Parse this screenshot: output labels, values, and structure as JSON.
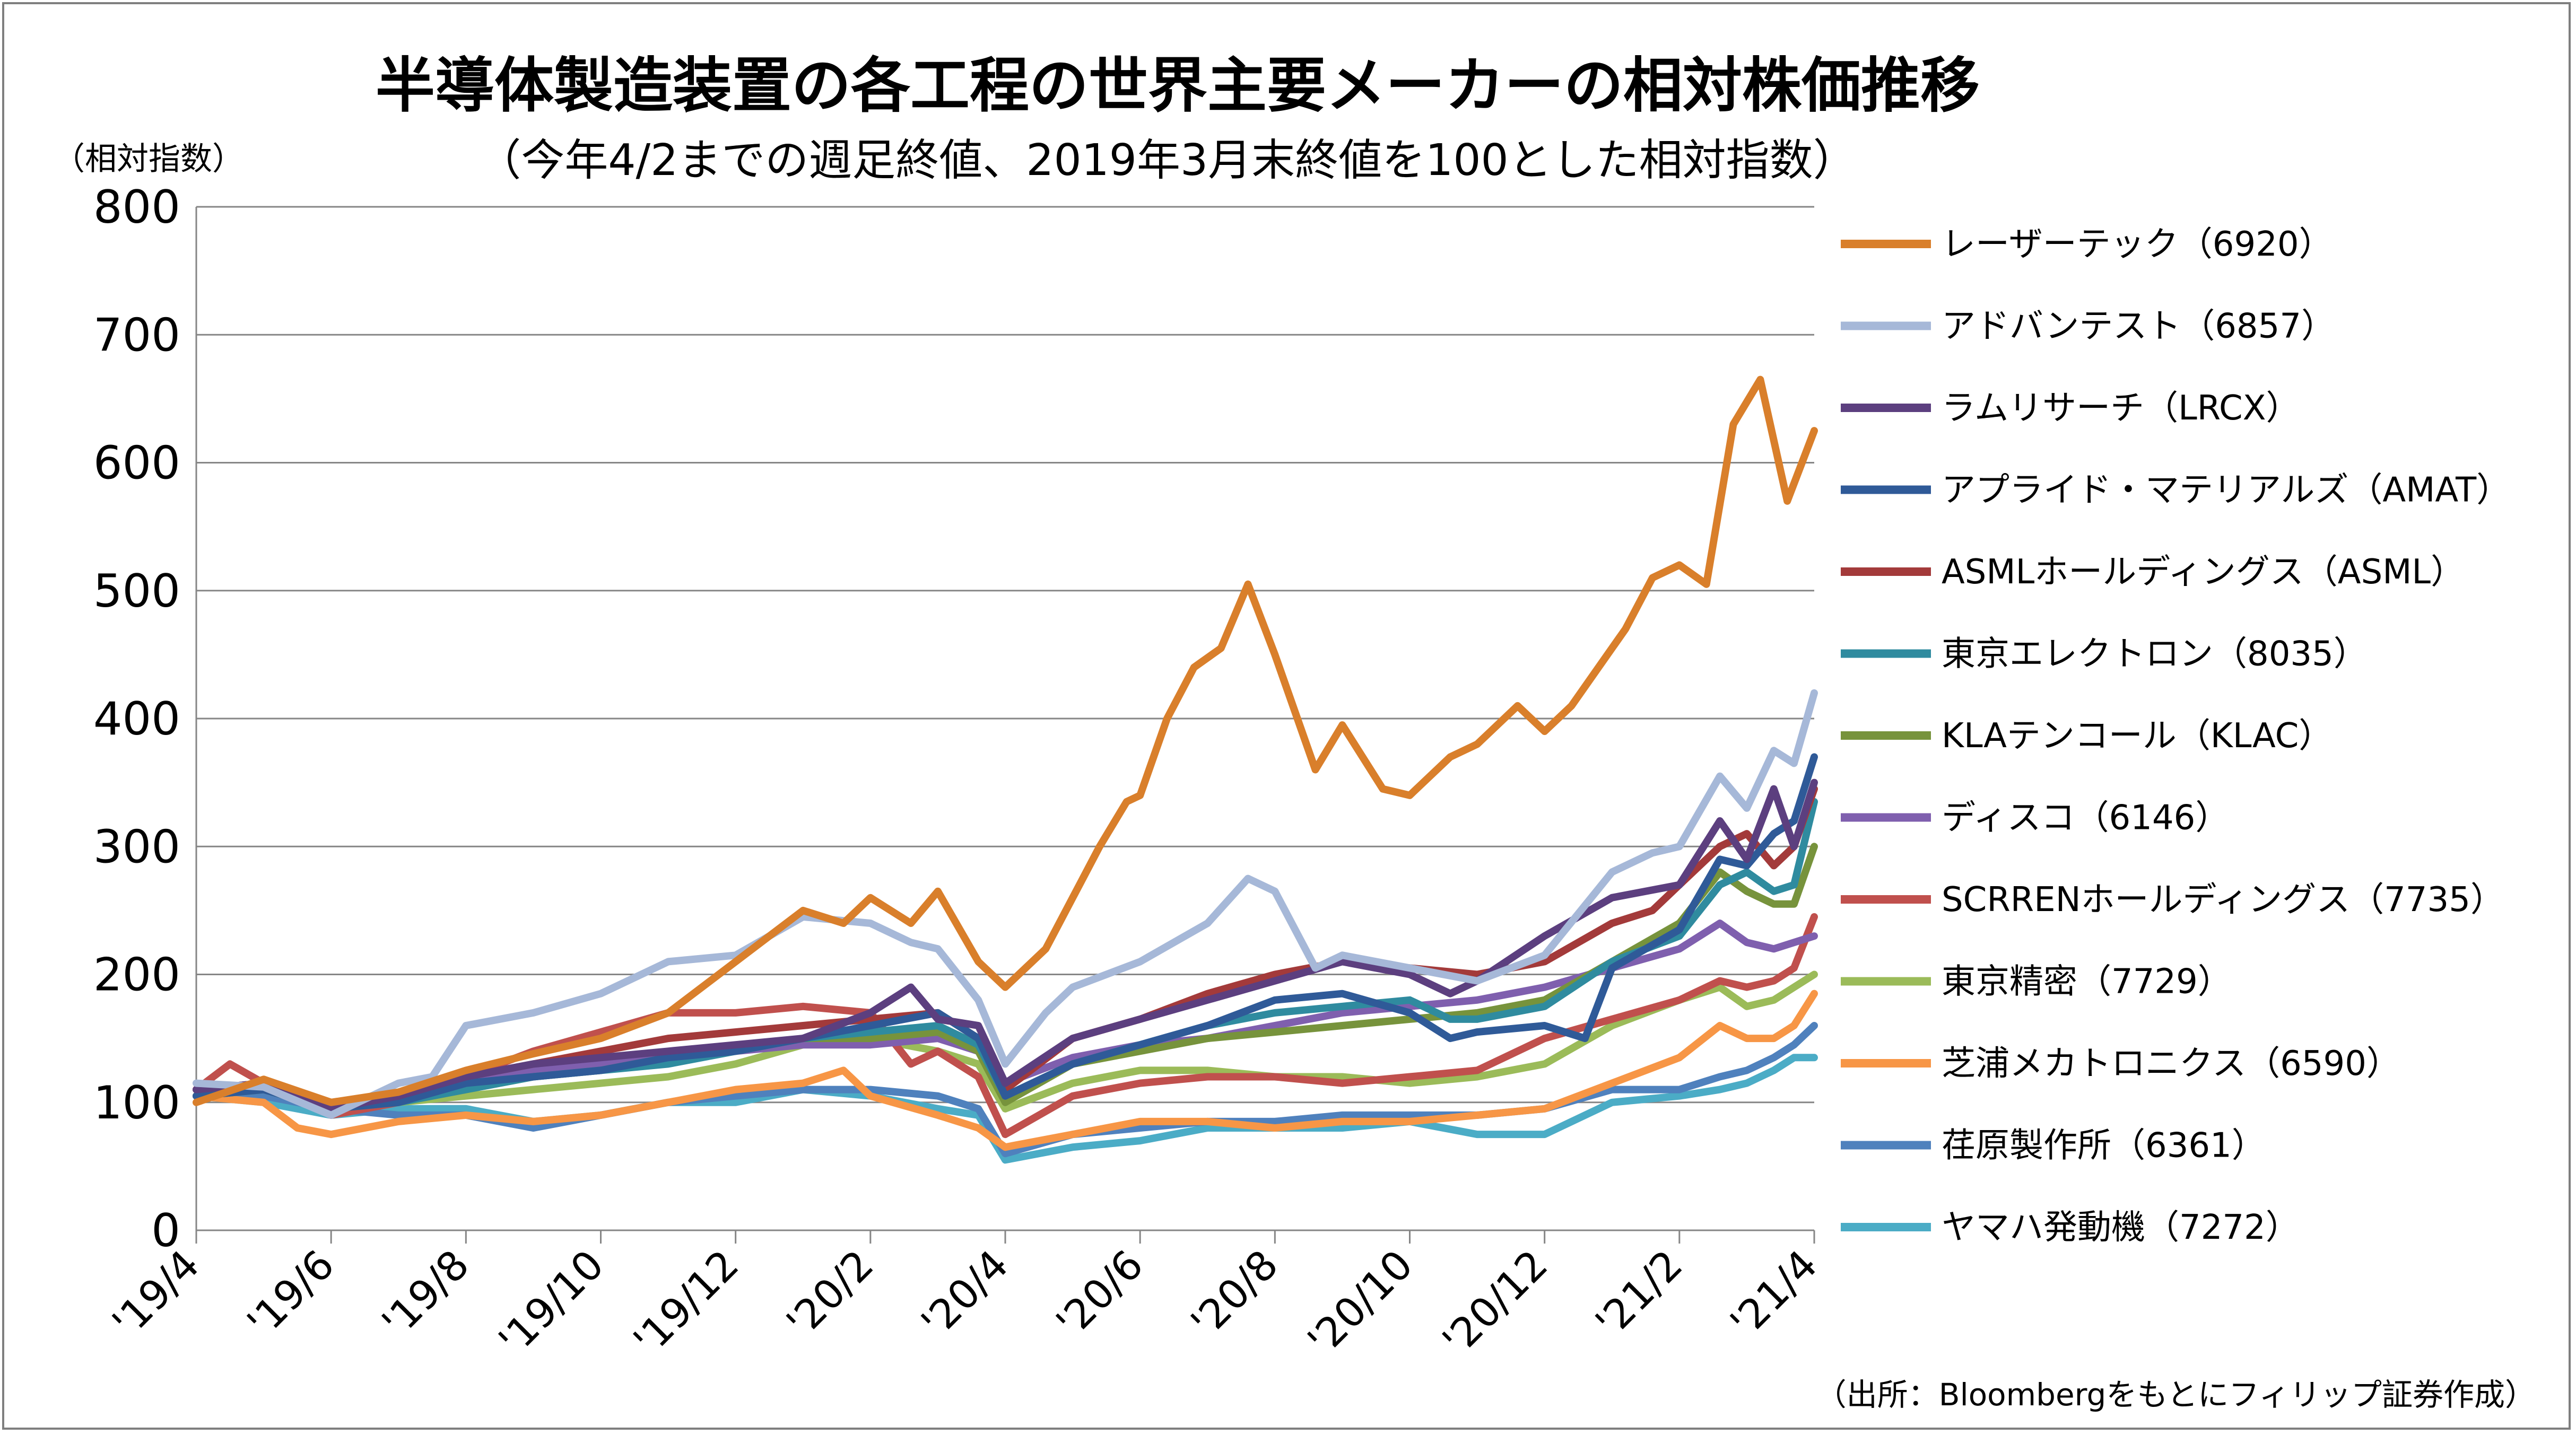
{
  "chart_data": {
    "type": "line",
    "title": "半導体製造装置の各工程の世界主要メーカーの相対株価推移",
    "subtitle": "（今年4/2までの週足終値、2019年3月末終値を100とした相対指数）",
    "ylabel": "（相対指数）",
    "source": "（出所：Bloombergをもとにフィリップ証券作成）",
    "ylim": [
      0,
      800
    ],
    "yticks": [
      "0",
      "100",
      "200",
      "300",
      "400",
      "500",
      "600",
      "700",
      "800"
    ],
    "xticks": [
      "'19/4",
      "'19/6",
      "'19/8",
      "'19/10",
      "'19/12",
      "'20/2",
      "'20/4",
      "'20/6",
      "'20/8",
      "'20/10",
      "'20/12",
      "'21/2",
      "'21/4"
    ],
    "xlim": [
      0,
      24
    ],
    "grid": "horizontal",
    "legend_position": "right",
    "series": [
      {
        "name": "レーザーテック（6920）",
        "color": "#d97f2b",
        "x": [
          0,
          1,
          2,
          3,
          4,
          5,
          6,
          7,
          8,
          9,
          9.6,
          10,
          10.6,
          11,
          11.6,
          12,
          12.6,
          13,
          13.4,
          13.8,
          14,
          14.4,
          14.8,
          15.2,
          15.6,
          16,
          16.6,
          17,
          17.6,
          18,
          18.6,
          19,
          19.6,
          20,
          20.4,
          20.8,
          21.2,
          21.6,
          22,
          22.4,
          22.8,
          23.2,
          23.6,
          24
        ],
        "values": [
          100,
          118,
          100,
          108,
          125,
          138,
          150,
          170,
          210,
          250,
          240,
          260,
          240,
          265,
          210,
          190,
          220,
          260,
          300,
          335,
          340,
          400,
          440,
          455,
          505,
          450,
          360,
          395,
          345,
          340,
          370,
          380,
          410,
          390,
          410,
          440,
          470,
          510,
          520,
          505,
          630,
          665,
          570,
          625
        ]
      },
      {
        "name": "アドバンテスト（6857）",
        "color": "#a6b8d8",
        "x": [
          0,
          1,
          2,
          3,
          3.5,
          4,
          5,
          6,
          7,
          8,
          9,
          10,
          10.6,
          11,
          11.6,
          12,
          12.6,
          13,
          14,
          15,
          15.6,
          16,
          16.6,
          17,
          18,
          19,
          20,
          21,
          21.6,
          22,
          22.6,
          23,
          23.4,
          23.7,
          24
        ],
        "values": [
          115,
          112,
          90,
          115,
          120,
          160,
          170,
          185,
          210,
          215,
          245,
          240,
          225,
          220,
          180,
          130,
          170,
          190,
          210,
          240,
          275,
          265,
          205,
          215,
          205,
          195,
          215,
          280,
          295,
          300,
          355,
          330,
          375,
          365,
          420
        ]
      },
      {
        "name": "ラムリサーチ（LRCX）",
        "color": "#5c3f7f",
        "x": [
          0,
          1,
          2,
          3,
          4,
          5,
          6,
          7,
          8,
          9,
          10,
          10.6,
          11,
          11.6,
          12,
          13,
          14,
          15,
          16,
          17,
          18,
          18.6,
          19,
          20,
          21,
          22,
          22.6,
          23,
          23.4,
          23.7,
          24
        ],
        "values": [
          110,
          115,
          95,
          105,
          120,
          130,
          135,
          140,
          145,
          150,
          170,
          190,
          165,
          160,
          115,
          150,
          165,
          180,
          195,
          210,
          200,
          185,
          195,
          230,
          260,
          270,
          320,
          290,
          345,
          300,
          350
        ]
      },
      {
        "name": "アプライド・マテリアルズ（AMAT）",
        "color": "#2f5a98",
        "x": [
          0,
          1,
          2,
          3,
          4,
          5,
          6,
          7,
          8,
          9,
          10,
          11,
          11.6,
          12,
          13,
          14,
          15,
          16,
          17,
          18,
          18.6,
          19,
          20,
          20.6,
          21,
          22,
          22.6,
          23,
          23.4,
          23.7,
          24
        ],
        "values": [
          105,
          110,
          95,
          100,
          115,
          120,
          125,
          135,
          140,
          150,
          160,
          170,
          150,
          105,
          130,
          145,
          160,
          180,
          185,
          170,
          150,
          155,
          160,
          150,
          205,
          235,
          290,
          285,
          310,
          320,
          370
        ]
      },
      {
        "name": "ASMLホールディングス（ASML）",
        "color": "#a33a3a",
        "x": [
          0,
          1,
          2,
          3,
          4,
          5,
          6,
          7,
          8,
          9,
          10,
          11,
          11.6,
          12,
          13,
          14,
          15,
          16,
          17,
          18,
          19,
          20,
          21,
          21.6,
          22,
          22.6,
          23,
          23.4,
          23.7,
          24
        ],
        "values": [
          110,
          115,
          100,
          105,
          120,
          130,
          140,
          150,
          155,
          160,
          165,
          170,
          150,
          110,
          150,
          165,
          185,
          200,
          210,
          205,
          200,
          210,
          240,
          250,
          270,
          300,
          310,
          285,
          300,
          345
        ]
      },
      {
        "name": "東京エレクトロン（8035）",
        "color": "#2f8b9f",
        "x": [
          0,
          1,
          2,
          3,
          4,
          5,
          6,
          7,
          8,
          9,
          10,
          11,
          11.6,
          12,
          13,
          14,
          15,
          16,
          17,
          18,
          18.6,
          19,
          20,
          21,
          22,
          22.6,
          23,
          23.4,
          23.7,
          24
        ],
        "values": [
          105,
          110,
          95,
          100,
          110,
          120,
          125,
          130,
          140,
          150,
          155,
          160,
          145,
          105,
          130,
          145,
          160,
          170,
          175,
          180,
          165,
          165,
          175,
          210,
          230,
          270,
          280,
          265,
          270,
          335
        ]
      },
      {
        "name": "KLAテンコール（KLAC）",
        "color": "#77933c",
        "x": [
          0,
          1,
          2,
          3,
          4,
          5,
          6,
          7,
          8,
          9,
          10,
          11,
          11.6,
          12,
          13,
          14,
          15,
          16,
          17,
          18,
          19,
          20,
          21,
          22,
          22.6,
          23,
          23.4,
          23.7,
          24
        ],
        "values": [
          105,
          110,
          95,
          100,
          110,
          120,
          125,
          135,
          140,
          150,
          150,
          155,
          140,
          100,
          130,
          140,
          150,
          155,
          160,
          165,
          170,
          180,
          210,
          240,
          280,
          265,
          255,
          255,
          300
        ]
      },
      {
        "name": "ディスコ（6146）",
        "color": "#7f5fae",
        "x": [
          0,
          1,
          2,
          3,
          4,
          5,
          6,
          7,
          8,
          9,
          10,
          11,
          11.6,
          12,
          13,
          14,
          15,
          16,
          17,
          18,
          19,
          20,
          21,
          22,
          22.6,
          23,
          23.4,
          23.7,
          24
        ],
        "values": [
          110,
          115,
          100,
          105,
          115,
          125,
          130,
          135,
          140,
          145,
          145,
          150,
          140,
          115,
          135,
          145,
          150,
          160,
          170,
          175,
          180,
          190,
          205,
          220,
          240,
          225,
          220,
          225,
          230
        ]
      },
      {
        "name": "SCRRENホールディングス（7735）",
        "color": "#c0504d",
        "x": [
          0,
          0.5,
          1,
          2,
          3,
          4,
          5,
          6,
          7,
          8,
          9,
          10,
          10.6,
          11,
          11.6,
          12,
          13,
          14,
          15,
          16,
          17,
          18,
          19,
          20,
          21,
          22,
          22.6,
          23,
          23.4,
          23.7,
          24
        ],
        "values": [
          110,
          130,
          115,
          90,
          100,
          120,
          140,
          155,
          170,
          170,
          175,
          170,
          130,
          140,
          120,
          75,
          105,
          115,
          120,
          120,
          115,
          120,
          125,
          150,
          165,
          180,
          195,
          190,
          195,
          205,
          245
        ]
      },
      {
        "name": "東京精密（7729）",
        "color": "#9bbb59",
        "x": [
          0,
          1,
          2,
          3,
          4,
          5,
          6,
          7,
          8,
          9,
          10,
          11,
          11.6,
          12,
          13,
          14,
          15,
          16,
          17,
          18,
          19,
          20,
          21,
          22,
          22.6,
          23,
          23.4,
          23.7,
          24
        ],
        "values": [
          105,
          110,
          95,
          100,
          105,
          110,
          115,
          120,
          130,
          145,
          150,
          140,
          130,
          95,
          115,
          125,
          125,
          120,
          120,
          115,
          120,
          130,
          160,
          180,
          190,
          175,
          180,
          190,
          200
        ]
      },
      {
        "name": "芝浦メカトロニクス（6590）",
        "color": "#f79646",
        "x": [
          0,
          1,
          1.5,
          2,
          3,
          4,
          5,
          6,
          7,
          8,
          9,
          9.6,
          10,
          11,
          11.6,
          12,
          13,
          14,
          15,
          16,
          17,
          18,
          19,
          20,
          21,
          22,
          22.6,
          23,
          23.4,
          23.7,
          24
        ],
        "values": [
          105,
          100,
          80,
          75,
          85,
          90,
          85,
          90,
          100,
          110,
          115,
          125,
          105,
          90,
          80,
          65,
          75,
          85,
          85,
          80,
          85,
          85,
          90,
          95,
          115,
          135,
          160,
          150,
          150,
          160,
          185
        ]
      },
      {
        "name": "荏原製作所（6361）",
        "color": "#4f81bd",
        "x": [
          0,
          1,
          2,
          3,
          4,
          5,
          6,
          7,
          8,
          9,
          10,
          11,
          11.6,
          12,
          13,
          14,
          15,
          16,
          17,
          18,
          19,
          20,
          21,
          22,
          22.6,
          23,
          23.4,
          23.7,
          24
        ],
        "values": [
          110,
          105,
          95,
          90,
          90,
          80,
          90,
          100,
          105,
          110,
          110,
          105,
          95,
          60,
          75,
          80,
          85,
          85,
          90,
          90,
          90,
          95,
          110,
          110,
          120,
          125,
          135,
          145,
          160
        ]
      },
      {
        "name": "ヤマハ発動機（7272）",
        "color": "#4bacc6",
        "x": [
          0,
          1,
          2,
          3,
          4,
          5,
          6,
          7,
          8,
          9,
          10,
          11,
          11.6,
          12,
          13,
          14,
          15,
          16,
          17,
          18,
          19,
          20,
          21,
          22,
          22.6,
          23,
          23.4,
          23.7,
          24
        ],
        "values": [
          105,
          100,
          90,
          95,
          95,
          85,
          90,
          100,
          100,
          110,
          105,
          95,
          90,
          55,
          65,
          70,
          80,
          80,
          80,
          85,
          75,
          75,
          100,
          105,
          110,
          115,
          125,
          135,
          135
        ]
      }
    ]
  }
}
